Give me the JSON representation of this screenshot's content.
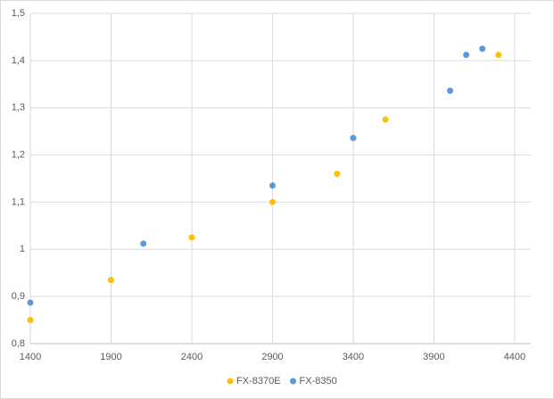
{
  "chart_data": {
    "type": "scatter",
    "series": [
      {
        "name": "FX-8370E",
        "color": "#ffc000",
        "x": [
          1400,
          1900,
          2400,
          2900,
          3300,
          3600,
          4300
        ],
        "values": [
          0.85,
          0.935,
          1.025,
          1.1,
          1.16,
          1.275,
          1.412
        ]
      },
      {
        "name": "FX-8350",
        "color": "#5b9bd5",
        "x": [
          1400,
          2100,
          2900,
          3400,
          4000,
          4100,
          4200
        ],
        "values": [
          0.887,
          1.012,
          1.135,
          1.236,
          1.336,
          1.412,
          1.425
        ]
      }
    ],
    "xlim": [
      1400,
      4500
    ],
    "xticks": [
      1400,
      1900,
      2400,
      2900,
      3400,
      3900,
      4400
    ],
    "ylim": [
      0.8,
      1.5
    ],
    "yticks": [
      {
        "value": 0.8,
        "label": "0,8"
      },
      {
        "value": 0.9,
        "label": "0,9"
      },
      1,
      {
        "value": 1.1,
        "label": "1,1"
      },
      {
        "value": 1.2,
        "label": "1,2"
      },
      {
        "value": 1.3,
        "label": "1,3"
      },
      {
        "value": 1.4,
        "label": "1,4"
      },
      {
        "value": 1.5,
        "label": "1,5"
      }
    ],
    "grid": true,
    "legend": "bottom"
  }
}
